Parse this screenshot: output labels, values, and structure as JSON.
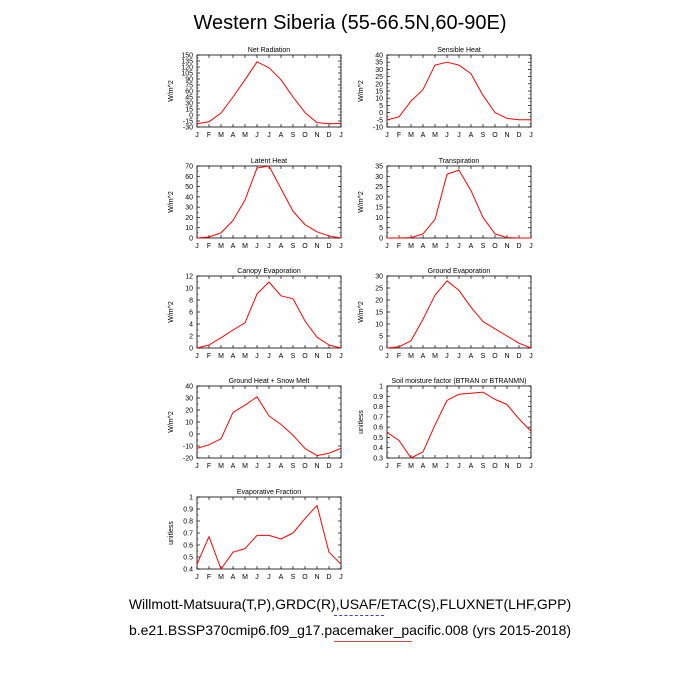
{
  "page": {
    "title": "Western Siberia (55-66.5N,60-90E)",
    "caption_line1": "Willmott-Matsuura(T,P),GRDC(R),USAF/ETAC(S),FLUXNET(LHF,GPP)",
    "caption_line2": "b.e21.BSSP370cmip6.f09_g17.pacemaker_pacific.008 (yrs 2015-2018)"
  },
  "colors": {
    "line": "#ff0000",
    "axis": "#000000"
  },
  "chart_data": [
    {
      "type": "line",
      "title": "Net Radiation",
      "ylabel": "W/m^2",
      "categories": [
        "J",
        "F",
        "M",
        "A",
        "M",
        "J",
        "J",
        "A",
        "S",
        "O",
        "N",
        "D",
        "J"
      ],
      "values": [
        -22,
        -17,
        5,
        45,
        88,
        133,
        118,
        88,
        45,
        6,
        -19,
        -22,
        -21
      ],
      "ylim": [
        -30,
        150
      ],
      "yticks": [
        -30,
        -15,
        0,
        15,
        30,
        45,
        60,
        75,
        90,
        105,
        120,
        135,
        150
      ]
    },
    {
      "type": "line",
      "title": "Sensible Heat",
      "ylabel": "W/m^2",
      "categories": [
        "J",
        "F",
        "M",
        "A",
        "M",
        "J",
        "J",
        "A",
        "S",
        "O",
        "N",
        "D",
        "J"
      ],
      "values": [
        -5,
        -3,
        8,
        16,
        33,
        35,
        33,
        27,
        12,
        0,
        -4,
        -5,
        -5
      ],
      "ylim": [
        -10,
        40
      ],
      "yticks": [
        -10,
        -5,
        0,
        5,
        10,
        15,
        20,
        25,
        30,
        35,
        40
      ]
    },
    {
      "type": "line",
      "title": "Latent Heat",
      "ylabel": "W/m^2",
      "categories": [
        "J",
        "F",
        "M",
        "A",
        "M",
        "J",
        "J",
        "A",
        "S",
        "O",
        "N",
        "D",
        "J"
      ],
      "values": [
        0,
        1,
        5,
        17,
        37,
        68,
        70,
        48,
        26,
        13,
        6,
        2,
        0
      ],
      "ylim": [
        0,
        70
      ],
      "yticks": [
        0,
        10,
        20,
        30,
        40,
        50,
        60,
        70
      ]
    },
    {
      "type": "line",
      "title": "Transpiration",
      "ylabel": "W/m^2",
      "categories": [
        "J",
        "F",
        "M",
        "A",
        "M",
        "J",
        "J",
        "A",
        "S",
        "O",
        "N",
        "D",
        "J"
      ],
      "values": [
        0,
        0,
        0.2,
        2,
        9,
        31,
        33,
        23,
        10,
        2,
        0.2,
        0,
        0
      ],
      "ylim": [
        0,
        35
      ],
      "yticks": [
        0,
        5,
        10,
        15,
        20,
        25,
        30,
        35
      ]
    },
    {
      "type": "line",
      "title": "Canopy Evaporation",
      "ylabel": "W/m^2",
      "categories": [
        "J",
        "F",
        "M",
        "A",
        "M",
        "J",
        "J",
        "A",
        "S",
        "O",
        "N",
        "D",
        "J"
      ],
      "values": [
        0,
        0.5,
        1.7,
        3,
        4.2,
        9,
        11,
        8.7,
        8.2,
        4.5,
        1.8,
        0.5,
        0
      ],
      "ylim": [
        0,
        12
      ],
      "yticks": [
        0,
        2,
        4,
        6,
        8,
        10,
        12
      ]
    },
    {
      "type": "line",
      "title": "Ground Evaporation",
      "ylabel": "W/m^2",
      "categories": [
        "J",
        "F",
        "M",
        "A",
        "M",
        "J",
        "J",
        "A",
        "S",
        "O",
        "N",
        "D",
        "J"
      ],
      "values": [
        0,
        0.5,
        3,
        12,
        22,
        28,
        24,
        17,
        11,
        8,
        5,
        2,
        0
      ],
      "ylim": [
        0,
        30
      ],
      "yticks": [
        0,
        5,
        10,
        15,
        20,
        25,
        30
      ]
    },
    {
      "type": "line",
      "title": "Ground Heat + Snow Melt",
      "ylabel": "W/m^2",
      "categories": [
        "J",
        "F",
        "M",
        "A",
        "M",
        "J",
        "J",
        "A",
        "S",
        "O",
        "N",
        "D",
        "J"
      ],
      "values": [
        -12,
        -9,
        -4,
        18,
        24,
        31,
        15,
        8,
        -1,
        -12,
        -18,
        -16,
        -12
      ],
      "ylim": [
        -20,
        40
      ],
      "yticks": [
        -20,
        -10,
        0,
        10,
        20,
        30,
        40
      ]
    },
    {
      "type": "line",
      "title": "Soil moisture factor (BTRAN or BTRANMN)",
      "ylabel": "unitless",
      "categories": [
        "J",
        "F",
        "M",
        "A",
        "M",
        "J",
        "J",
        "A",
        "S",
        "O",
        "N",
        "D",
        "J"
      ],
      "values": [
        0.55,
        0.47,
        0.3,
        0.36,
        0.62,
        0.86,
        0.92,
        0.93,
        0.94,
        0.87,
        0.82,
        0.68,
        0.56
      ],
      "ylim": [
        0.3,
        1.0
      ],
      "yticks": [
        0.3,
        0.4,
        0.5,
        0.6,
        0.7,
        0.8,
        0.9,
        1.0
      ]
    },
    {
      "type": "line",
      "title": "Evaporative Fraction",
      "ylabel": "unitless",
      "categories": [
        "J",
        "F",
        "M",
        "A",
        "M",
        "J",
        "J",
        "A",
        "S",
        "O",
        "N",
        "D",
        "J"
      ],
      "values": [
        0.44,
        0.67,
        0.4,
        0.54,
        0.57,
        0.68,
        0.68,
        0.65,
        0.7,
        0.82,
        0.93,
        0.54,
        0.44
      ],
      "ylim": [
        0.4,
        1.0
      ],
      "yticks": [
        0.4,
        0.5,
        0.6,
        0.7,
        0.8,
        0.9,
        1.0
      ]
    }
  ]
}
